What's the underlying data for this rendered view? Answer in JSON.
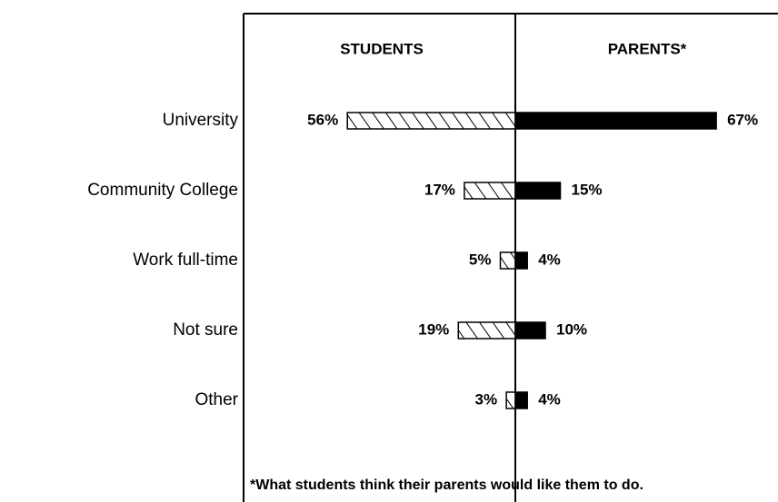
{
  "chart_data": {
    "type": "bar",
    "categories": [
      "University",
      "Community College",
      "Work full-time",
      "Not sure",
      "Other"
    ],
    "series": [
      {
        "name": "STUDENTS",
        "color": "#ffffff",
        "values": [
          56,
          17,
          5,
          19,
          3
        ],
        "value_labels": [
          "56%",
          "17%",
          "5%",
          "19%",
          "3%"
        ]
      },
      {
        "name": "PARENTS*",
        "color": "#000000",
        "values": [
          67,
          15,
          4,
          10,
          4
        ],
        "value_labels": [
          "67%",
          "15%",
          "4%",
          "10%",
          "4%"
        ]
      }
    ],
    "footnote": "*What students think their parents would like them to do."
  }
}
